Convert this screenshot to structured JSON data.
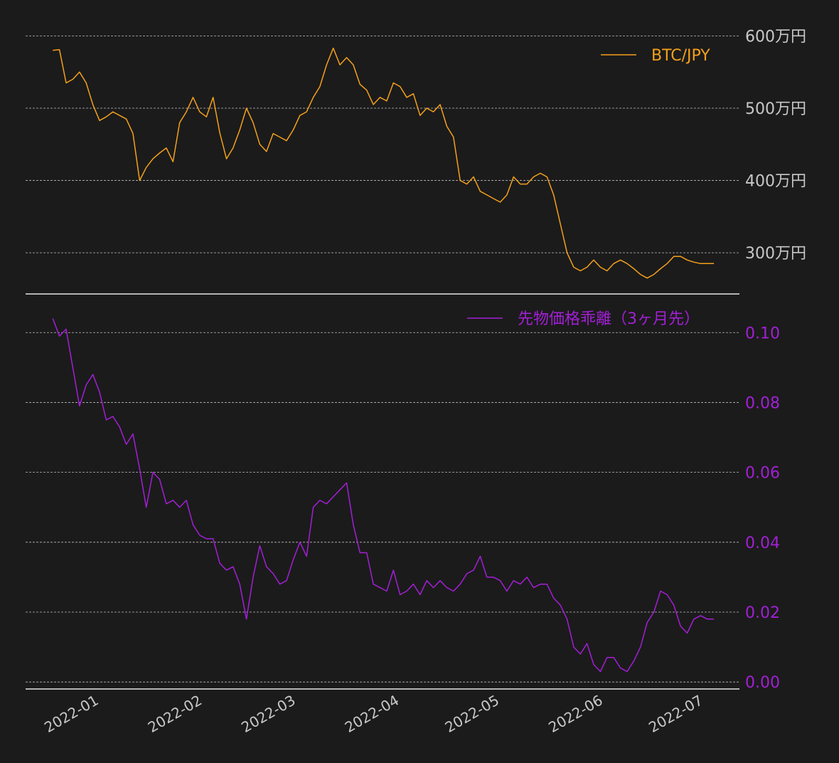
{
  "colors": {
    "background": "#1b1b1b",
    "price": "#f4a01c",
    "basis": "#a31fd6",
    "tick": "#c8c8c8"
  },
  "chart_data": [
    {
      "type": "line",
      "series": [
        {
          "name": "BTC/JPY",
          "color": "#f4a01c"
        }
      ],
      "y_ticks": [
        3000000,
        4000000,
        5000000,
        6000000
      ],
      "y_tick_labels": [
        "300万円",
        "400万円",
        "500万円",
        "600万円"
      ],
      "ylim": [
        2430000,
        6300000
      ],
      "grid": true,
      "legend_position": "top-right",
      "x": [
        "2021-12-18",
        "2021-12-20",
        "2021-12-22",
        "2021-12-24",
        "2021-12-26",
        "2021-12-28",
        "2021-12-30",
        "2022-01-01",
        "2022-01-03",
        "2022-01-05",
        "2022-01-07",
        "2022-01-09",
        "2022-01-11",
        "2022-01-13",
        "2022-01-15",
        "2022-01-17",
        "2022-01-19",
        "2022-01-21",
        "2022-01-23",
        "2022-01-25",
        "2022-01-27",
        "2022-01-29",
        "2022-01-31",
        "2022-02-02",
        "2022-02-04",
        "2022-02-06",
        "2022-02-08",
        "2022-02-10",
        "2022-02-12",
        "2022-02-14",
        "2022-02-16",
        "2022-02-18",
        "2022-02-20",
        "2022-02-22",
        "2022-02-24",
        "2022-02-26",
        "2022-02-28",
        "2022-03-02",
        "2022-03-04",
        "2022-03-06",
        "2022-03-08",
        "2022-03-10",
        "2022-03-12",
        "2022-03-14",
        "2022-03-16",
        "2022-03-18",
        "2022-03-20",
        "2022-03-22",
        "2022-03-24",
        "2022-03-26",
        "2022-03-28",
        "2022-03-30",
        "2022-04-01",
        "2022-04-03",
        "2022-04-05",
        "2022-04-07",
        "2022-04-09",
        "2022-04-11",
        "2022-04-13",
        "2022-04-15",
        "2022-04-17",
        "2022-04-19",
        "2022-04-21",
        "2022-04-23",
        "2022-04-25",
        "2022-04-27",
        "2022-04-29",
        "2022-05-01",
        "2022-05-03",
        "2022-05-05",
        "2022-05-07",
        "2022-05-09",
        "2022-05-11",
        "2022-05-13",
        "2022-05-15",
        "2022-05-17",
        "2022-05-19",
        "2022-05-21",
        "2022-05-23",
        "2022-05-25",
        "2022-05-27",
        "2022-05-29",
        "2022-05-31",
        "2022-06-02",
        "2022-06-04",
        "2022-06-06",
        "2022-06-08",
        "2022-06-10",
        "2022-06-12",
        "2022-06-14",
        "2022-06-16",
        "2022-06-18",
        "2022-06-20",
        "2022-06-22",
        "2022-06-24",
        "2022-06-26",
        "2022-06-28",
        "2022-06-30",
        "2022-07-02",
        "2022-07-04"
      ],
      "values": [
        5800000,
        5810000,
        5350000,
        5400000,
        5500000,
        5350000,
        5050000,
        4830000,
        4880000,
        4950000,
        4900000,
        4850000,
        4650000,
        4000000,
        4180000,
        4300000,
        4380000,
        4450000,
        4260000,
        4800000,
        4950000,
        5150000,
        4950000,
        4880000,
        5150000,
        4660000,
        4300000,
        4450000,
        4700000,
        5000000,
        4800000,
        4500000,
        4400000,
        4650000,
        4600000,
        4550000,
        4700000,
        4900000,
        4950000,
        5150000,
        5300000,
        5600000,
        5830000,
        5600000,
        5700000,
        5600000,
        5330000,
        5250000,
        5050000,
        5150000,
        5100000,
        5350000,
        5300000,
        5150000,
        5200000,
        4900000,
        5000000,
        4950000,
        5050000,
        4750000,
        4600000,
        4000000,
        3950000,
        4050000,
        3850000,
        3800000,
        3750000,
        3700000,
        3800000,
        4050000,
        3950000,
        3950000,
        4050000,
        4100000,
        4050000,
        3800000,
        3400000,
        3000000,
        2800000,
        2750000,
        2800000,
        2900000,
        2800000,
        2750000,
        2850000,
        2900000,
        2850000,
        2780000,
        2700000,
        2650000,
        2700000,
        2780000,
        2850000,
        2950000,
        2950000,
        2900000,
        2870000,
        2850000,
        2850000,
        2850000
      ]
    },
    {
      "type": "line",
      "series": [
        {
          "name": "先物価格乖離（3ヶ月先）",
          "color": "#a31fd6"
        }
      ],
      "y_ticks": [
        0.0,
        0.02,
        0.04,
        0.06,
        0.08,
        0.1
      ],
      "y_tick_labels": [
        "0.00",
        "0.02",
        "0.04",
        "0.06",
        "0.08",
        "0.10"
      ],
      "ylim": [
        -0.002,
        0.108
      ],
      "grid": true,
      "legend_position": "top-right",
      "x": [
        "2021-12-18",
        "2021-12-20",
        "2021-12-22",
        "2021-12-24",
        "2021-12-26",
        "2021-12-28",
        "2021-12-30",
        "2022-01-01",
        "2022-01-03",
        "2022-01-05",
        "2022-01-07",
        "2022-01-09",
        "2022-01-11",
        "2022-01-13",
        "2022-01-15",
        "2022-01-17",
        "2022-01-19",
        "2022-01-21",
        "2022-01-23",
        "2022-01-25",
        "2022-01-27",
        "2022-01-29",
        "2022-01-31",
        "2022-02-02",
        "2022-02-04",
        "2022-02-06",
        "2022-02-08",
        "2022-02-10",
        "2022-02-12",
        "2022-02-14",
        "2022-02-16",
        "2022-02-18",
        "2022-02-20",
        "2022-02-22",
        "2022-02-24",
        "2022-02-26",
        "2022-02-28",
        "2022-03-02",
        "2022-03-04",
        "2022-03-06",
        "2022-03-08",
        "2022-03-10",
        "2022-03-12",
        "2022-03-14",
        "2022-03-16",
        "2022-03-18",
        "2022-03-20",
        "2022-03-22",
        "2022-03-24",
        "2022-03-26",
        "2022-03-28",
        "2022-03-30",
        "2022-04-01",
        "2022-04-03",
        "2022-04-05",
        "2022-04-07",
        "2022-04-09",
        "2022-04-11",
        "2022-04-13",
        "2022-04-15",
        "2022-04-17",
        "2022-04-19",
        "2022-04-21",
        "2022-04-23",
        "2022-04-25",
        "2022-04-27",
        "2022-04-29",
        "2022-05-01",
        "2022-05-03",
        "2022-05-05",
        "2022-05-07",
        "2022-05-09",
        "2022-05-11",
        "2022-05-13",
        "2022-05-15",
        "2022-05-17",
        "2022-05-19",
        "2022-05-21",
        "2022-05-23",
        "2022-05-25",
        "2022-05-27",
        "2022-05-29",
        "2022-05-31",
        "2022-06-02",
        "2022-06-04",
        "2022-06-06",
        "2022-06-08",
        "2022-06-10",
        "2022-06-12",
        "2022-06-14",
        "2022-06-16",
        "2022-06-18",
        "2022-06-20",
        "2022-06-22",
        "2022-06-24",
        "2022-06-26",
        "2022-06-28",
        "2022-06-30",
        "2022-07-02",
        "2022-07-04"
      ],
      "values": [
        0.104,
        0.099,
        0.101,
        0.09,
        0.079,
        0.085,
        0.088,
        0.083,
        0.075,
        0.076,
        0.073,
        0.068,
        0.071,
        0.061,
        0.05,
        0.06,
        0.058,
        0.051,
        0.052,
        0.05,
        0.052,
        0.045,
        0.042,
        0.041,
        0.041,
        0.034,
        0.032,
        0.033,
        0.028,
        0.018,
        0.03,
        0.039,
        0.033,
        0.031,
        0.028,
        0.029,
        0.035,
        0.04,
        0.036,
        0.05,
        0.052,
        0.051,
        0.053,
        0.055,
        0.057,
        0.045,
        0.037,
        0.037,
        0.028,
        0.027,
        0.026,
        0.032,
        0.025,
        0.026,
        0.028,
        0.025,
        0.029,
        0.027,
        0.029,
        0.027,
        0.026,
        0.028,
        0.031,
        0.032,
        0.036,
        0.03,
        0.03,
        0.029,
        0.026,
        0.029,
        0.028,
        0.03,
        0.027,
        0.028,
        0.028,
        0.024,
        0.022,
        0.018,
        0.01,
        0.008,
        0.011,
        0.005,
        0.003,
        0.007,
        0.007,
        0.004,
        0.003,
        0.006,
        0.01,
        0.017,
        0.02,
        0.026,
        0.025,
        0.022,
        0.016,
        0.014,
        0.018,
        0.019,
        0.018,
        0.018
      ]
    }
  ],
  "x_axis": {
    "ticks": [
      "2022-01-01",
      "2022-02-01",
      "2022-03-01",
      "2022-04-01",
      "2022-05-01",
      "2022-06-01",
      "2022-07-01"
    ],
    "tick_labels": [
      "2022-01",
      "2022-02",
      "2022-03",
      "2022-04",
      "2022-05",
      "2022-06",
      "2022-07"
    ]
  }
}
